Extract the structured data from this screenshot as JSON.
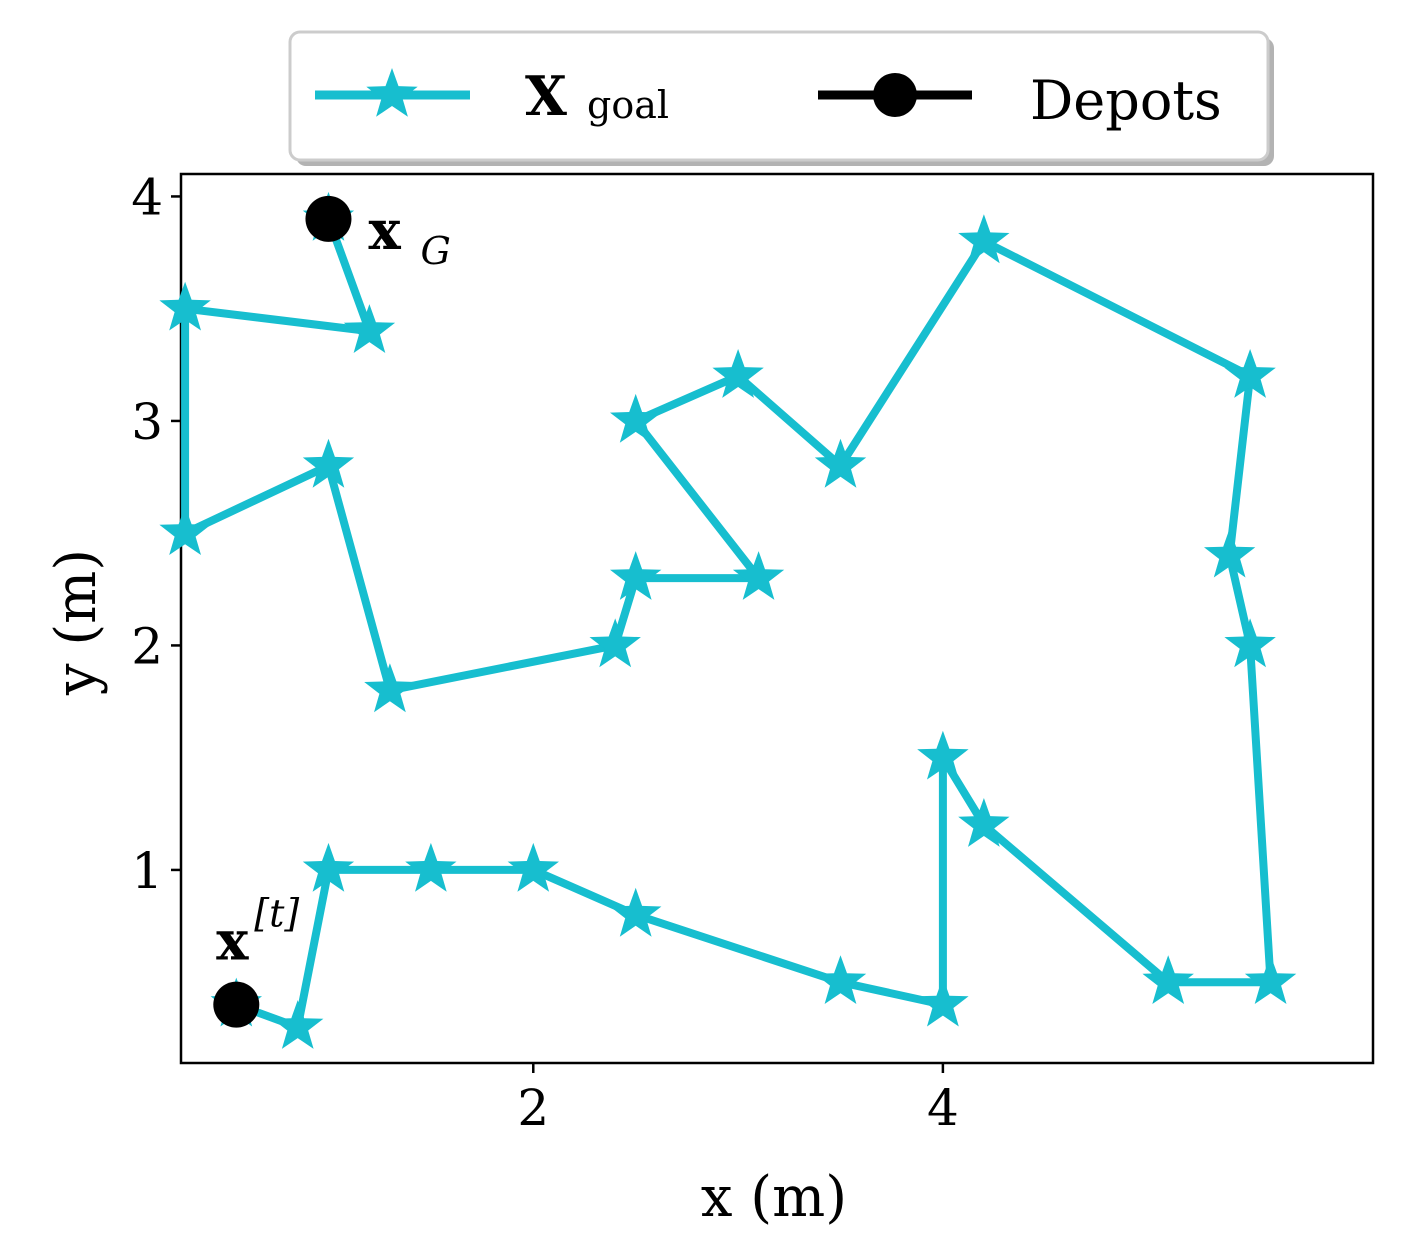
{
  "chart_data": {
    "type": "line",
    "xlabel": "x (m)",
    "ylabel": "y (m)",
    "xlim": [
      0.28,
      6.1
    ],
    "ylim": [
      0.14,
      4.1
    ],
    "xticks": [
      2,
      4
    ],
    "yticks": [
      1,
      2,
      3,
      4
    ],
    "grid": false,
    "legend_placement": "top-center (outside axes)",
    "series": [
      {
        "name": "X",
        "name_subscript": "goal",
        "marker": "star",
        "color": "#17becf",
        "x": [
          0.55,
          0.85,
          1.0,
          1.5,
          2.0,
          2.5,
          3.5,
          4.0,
          4.0,
          4.2,
          5.1,
          5.6,
          5.5,
          5.4,
          5.5,
          4.2,
          3.5,
          3.0,
          2.5,
          3.1,
          2.5,
          2.4,
          1.3,
          1.0,
          0.3,
          0.3,
          1.2,
          1.0
        ],
        "y": [
          0.4,
          0.3,
          1.0,
          1.0,
          1.0,
          0.8,
          0.5,
          0.4,
          1.5,
          1.2,
          0.5,
          0.5,
          2.0,
          2.4,
          3.2,
          3.8,
          2.8,
          3.2,
          3.0,
          2.3,
          2.3,
          2.0,
          1.8,
          2.8,
          2.5,
          3.5,
          3.4,
          3.9
        ]
      },
      {
        "name": "Depots",
        "marker": "circle",
        "color": "#000000",
        "x": [
          0.55,
          1.0
        ],
        "y": [
          0.4,
          3.9
        ]
      }
    ],
    "annotations": [
      {
        "text": "x",
        "superscript": "[t]",
        "x": 0.55,
        "y": 0.4,
        "position": "above"
      },
      {
        "text": "x",
        "subscript": "G",
        "x": 1.0,
        "y": 3.9,
        "position": "right"
      }
    ]
  },
  "colors": {
    "accent": "#17becf",
    "depot": "#000000",
    "axis": "#000000"
  }
}
